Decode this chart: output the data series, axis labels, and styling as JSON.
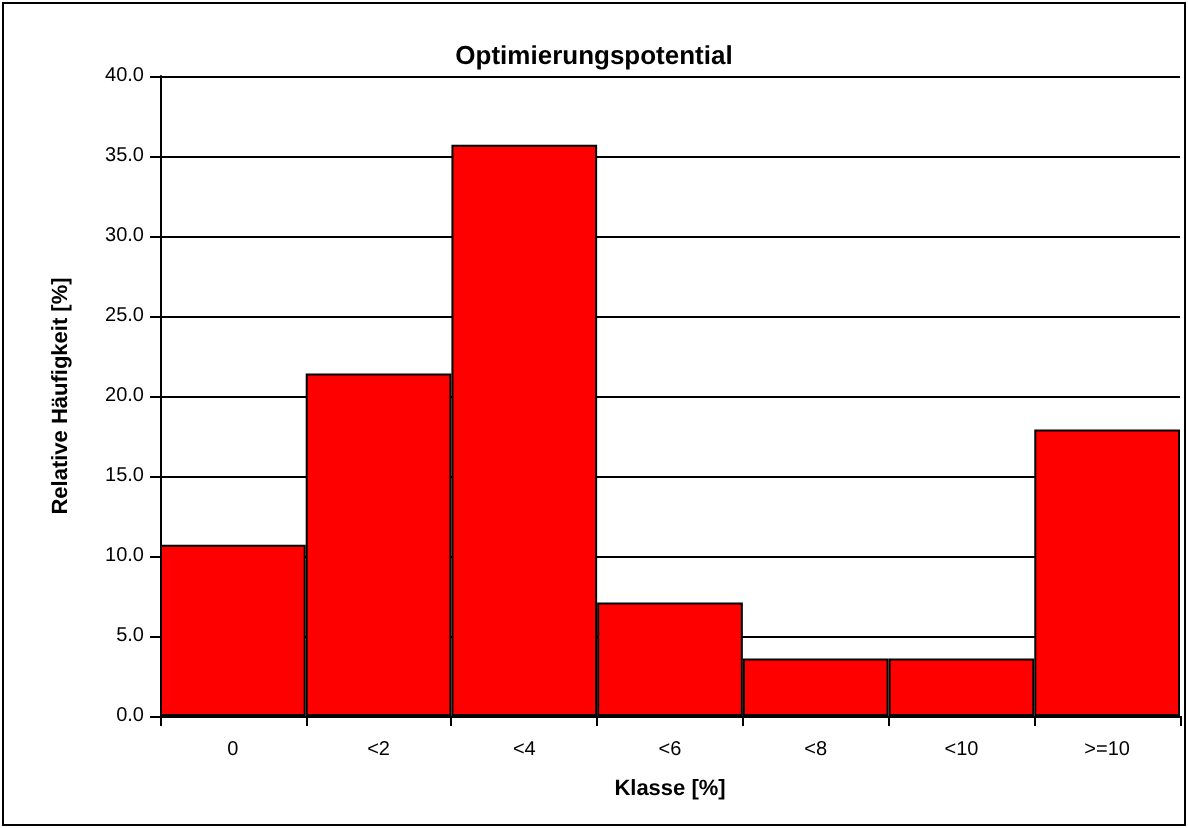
{
  "chart_data": {
    "type": "bar",
    "title": "Optimierungspotential",
    "xlabel": "Klasse [%]",
    "ylabel": "Relative Häufigkeit [%]",
    "categories": [
      "0",
      "<2",
      "<4",
      "<6",
      "<8",
      "<10",
      ">=10"
    ],
    "values": [
      10.7,
      21.4,
      35.7,
      7.1,
      3.6,
      3.6,
      17.9
    ],
    "color": "#ff0000",
    "ylim": [
      0,
      40
    ],
    "yticks": [
      {
        "value": 0,
        "label": "0.0"
      },
      {
        "value": 5,
        "label": "5.0"
      },
      {
        "value": 10,
        "label": "10.0"
      },
      {
        "value": 15,
        "label": "15.0"
      },
      {
        "value": 20,
        "label": "20.0"
      },
      {
        "value": 25,
        "label": "25.0"
      },
      {
        "value": 30,
        "label": "30.0"
      },
      {
        "value": 35,
        "label": "35.0"
      },
      {
        "value": 40,
        "label": "40.0"
      }
    ],
    "grid": "y"
  }
}
